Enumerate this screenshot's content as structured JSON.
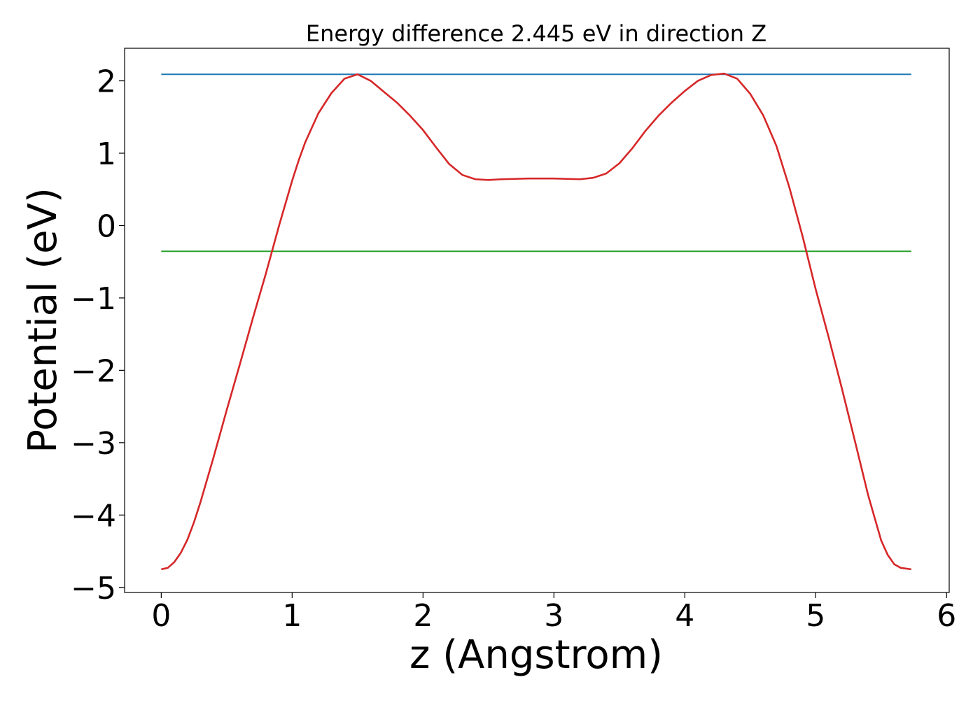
{
  "chart_data": {
    "type": "line",
    "title": "Energy difference 2.445 eV in direction Z",
    "xlabel": "z (Angstrom)",
    "ylabel": "Potential (eV)",
    "xlim": [
      -0.28,
      6.02
    ],
    "ylim": [
      -5.07,
      2.45
    ],
    "xticks": [
      0,
      1,
      2,
      3,
      4,
      5,
      6
    ],
    "xtick_labels": [
      "0",
      "1",
      "2",
      "3",
      "4",
      "5",
      "6"
    ],
    "yticks": [
      -5,
      -4,
      -3,
      -2,
      -1,
      0,
      1,
      2
    ],
    "ytick_labels": [
      "−5",
      "−4",
      "−3",
      "−2",
      "−1",
      "0",
      "1",
      "2"
    ],
    "grid": false,
    "series": [
      {
        "color": "#1f77b4",
        "x": [
          0,
          5.73
        ],
        "y": [
          2.09,
          2.09
        ]
      },
      {
        "color": "#2ca02c",
        "x": [
          0,
          5.73
        ],
        "y": [
          -0.355,
          -0.355
        ]
      },
      {
        "color": "#d62728",
        "x": [
          0,
          0.05,
          0.1,
          0.15,
          0.2,
          0.25,
          0.3,
          0.4,
          0.5,
          0.6,
          0.7,
          0.8,
          0.9,
          1.0,
          1.05,
          1.1,
          1.2,
          1.3,
          1.4,
          1.5,
          1.6,
          1.7,
          1.8,
          1.9,
          2.0,
          2.1,
          2.2,
          2.3,
          2.4,
          2.5,
          2.6,
          2.7,
          2.8,
          2.9,
          3.0,
          3.1,
          3.2,
          3.3,
          3.4,
          3.5,
          3.6,
          3.7,
          3.8,
          3.9,
          4.0,
          4.1,
          4.2,
          4.3,
          4.4,
          4.5,
          4.6,
          4.7,
          4.8,
          4.9,
          5.0,
          5.1,
          5.2,
          5.3,
          5.4,
          5.5,
          5.55,
          5.6,
          5.65,
          5.73
        ],
        "y": [
          -4.75,
          -4.73,
          -4.65,
          -4.52,
          -4.34,
          -4.1,
          -3.82,
          -3.2,
          -2.55,
          -1.92,
          -1.28,
          -0.66,
          0.0,
          0.62,
          0.9,
          1.15,
          1.55,
          1.83,
          2.03,
          2.09,
          2.0,
          1.85,
          1.7,
          1.52,
          1.32,
          1.08,
          0.85,
          0.7,
          0.64,
          0.63,
          0.64,
          0.645,
          0.65,
          0.65,
          0.65,
          0.645,
          0.64,
          0.66,
          0.72,
          0.86,
          1.07,
          1.31,
          1.52,
          1.7,
          1.86,
          2.0,
          2.08,
          2.1,
          2.03,
          1.82,
          1.52,
          1.1,
          0.52,
          -0.15,
          -0.88,
          -1.55,
          -2.25,
          -2.98,
          -3.72,
          -4.35,
          -4.55,
          -4.68,
          -4.73,
          -4.75
        ]
      }
    ]
  }
}
